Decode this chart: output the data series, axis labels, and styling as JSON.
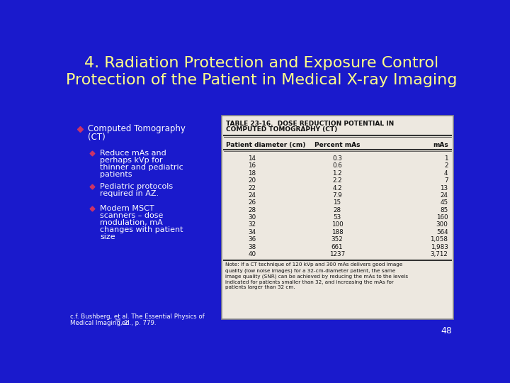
{
  "title_line1": "4. Radiation Protection and Exposure Control",
  "title_line2": "Protection of the Patient in Medical X-ray Imaging",
  "title_color": "#FFFF88",
  "slide_bg": "#1a1acc",
  "bullet_main_text": "Computed Tomography\n(CT)",
  "bullet_sub1": "Reduce mAs and\nperhaps kVp for\nthinner and pediatric\npatients",
  "bullet_sub2": "Pediatric protocols\nrequired in AZ.",
  "bullet_sub3": "Modern MSCT\nscanners – dose\nmodulation, mA\nchanges with patient\nsize",
  "citation_part1": "c.f. Bushberg, et al. The Essential Physics of",
  "citation_part2": "Medical Imaging, 2",
  "citation_super": "nd",
  "citation_part3": " ed., p. 779.",
  "page_num": "48",
  "table_title_line1": "TABLE 23-16.  DOSE REDUCTION POTENTIAL IN",
  "table_title_line2": "COMPUTED TOMOGRAPHY (CT)",
  "col_headers": [
    "Patient diameter (cm)",
    "Percent mAs",
    "mAs"
  ],
  "table_data": [
    [
      "14",
      "0.3",
      "1"
    ],
    [
      "16",
      "0.6",
      "2"
    ],
    [
      "18",
      "1.2",
      "4"
    ],
    [
      "20",
      "2.2",
      "7"
    ],
    [
      "22",
      "4.2",
      "13"
    ],
    [
      "24",
      "7.9",
      "24"
    ],
    [
      "26",
      "15",
      "45"
    ],
    [
      "28",
      "28",
      "85"
    ],
    [
      "30",
      "53",
      "160"
    ],
    [
      "32",
      "100",
      "300"
    ],
    [
      "34",
      "188",
      "564"
    ],
    [
      "36",
      "352",
      "1,058"
    ],
    [
      "38",
      "661",
      "1,983"
    ],
    [
      "40",
      "1237",
      "3,712"
    ]
  ],
  "note_text": "Note: If a CT technique of 120 kVp and 300 mAs delivers good image\nquality (low noise images) for a 32-cm-diameter patient, the same\nimage quality (SNR) can be achieved by reducing the mAs to the levels\nindicated for patients smaller than 32, and increasing the mAs for\npatients larger than 32 cm.",
  "bullet_color": "#cc3366",
  "text_color": "#ffffff",
  "table_bg": "#ede8e0",
  "table_line_color": "#333333"
}
